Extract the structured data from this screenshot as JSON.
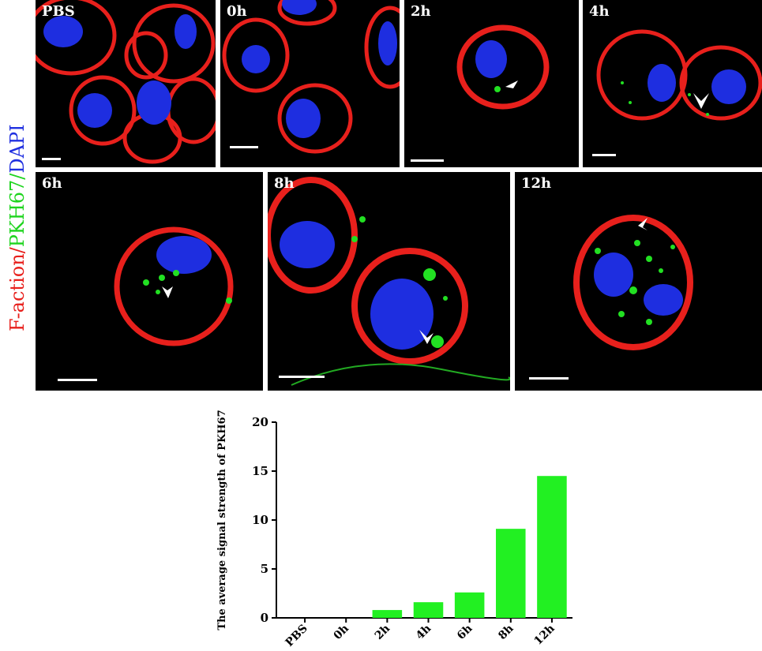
{
  "side_label": {
    "part1": "F-action",
    "sep1": "/",
    "part2": "PKH67",
    "sep2": "/",
    "part3": "DAPI",
    "color1": "#e8201c",
    "color2": "#1ed41e",
    "color3": "#2030e0"
  },
  "panels": [
    {
      "label": "PBS"
    },
    {
      "label": "0h"
    },
    {
      "label": "2h"
    },
    {
      "label": "4h"
    },
    {
      "label": "6h"
    },
    {
      "label": "8h"
    },
    {
      "label": "12h"
    }
  ],
  "colors": {
    "membrane": "#e8201c",
    "nucleus": "#1e2ee0",
    "vesicle": "#22e022",
    "bar": "#22f022"
  },
  "chart_data": {
    "type": "bar",
    "categories": [
      "PBS",
      "0h",
      "2h",
      "4h",
      "6h",
      "8h",
      "12h"
    ],
    "values": [
      0,
      0,
      0.8,
      1.6,
      2.6,
      9.1,
      14.5
    ],
    "title": "",
    "xlabel": "",
    "ylabel": "The average signal strength of PKH67",
    "ylim": [
      0,
      20
    ],
    "yticks": [
      0,
      5,
      10,
      15,
      20
    ],
    "grid": false
  }
}
